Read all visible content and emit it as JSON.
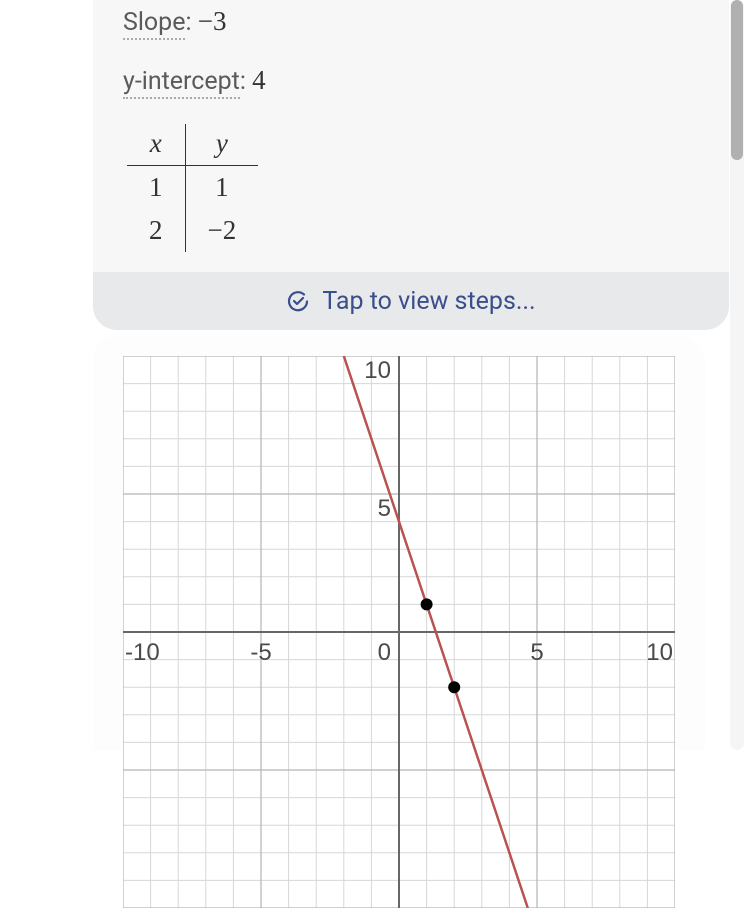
{
  "info": {
    "slope_label": "Slope",
    "slope_value": "−3",
    "yint_label": "y-intercept",
    "yint_value": "4"
  },
  "table": {
    "header_x": "x",
    "header_y": "y",
    "rows": [
      {
        "x": "1",
        "y": "1"
      },
      {
        "x": "2",
        "y": "−2"
      }
    ]
  },
  "steps": {
    "label": "Tap to view steps..."
  },
  "graph": {
    "type": "line",
    "xlim": [
      -10,
      10
    ],
    "ylim": [
      -10,
      10
    ],
    "grid_step": 1,
    "major_step": 5,
    "xtick_labels": [
      "-10",
      "-5",
      "0",
      "5",
      "10"
    ],
    "xtick_values": [
      -10,
      -5,
      0,
      5,
      10
    ],
    "ytick_labels": [
      "5",
      "10"
    ],
    "ytick_values": [
      5,
      10
    ],
    "grid_color": "#d7d7d7",
    "major_grid_color": "#b5b5b5",
    "axis_color": "#676767",
    "background_color": "#ffffff",
    "line_color": "#b85450",
    "line_width": 2.5,
    "line_slope": -3,
    "line_intercept": 4,
    "points": [
      {
        "x": 1,
        "y": 1
      },
      {
        "x": 2,
        "y": -2
      }
    ],
    "point_color": "#000000",
    "point_radius": 6,
    "tick_fontsize": 24,
    "tick_color": "#4a4a4a"
  }
}
